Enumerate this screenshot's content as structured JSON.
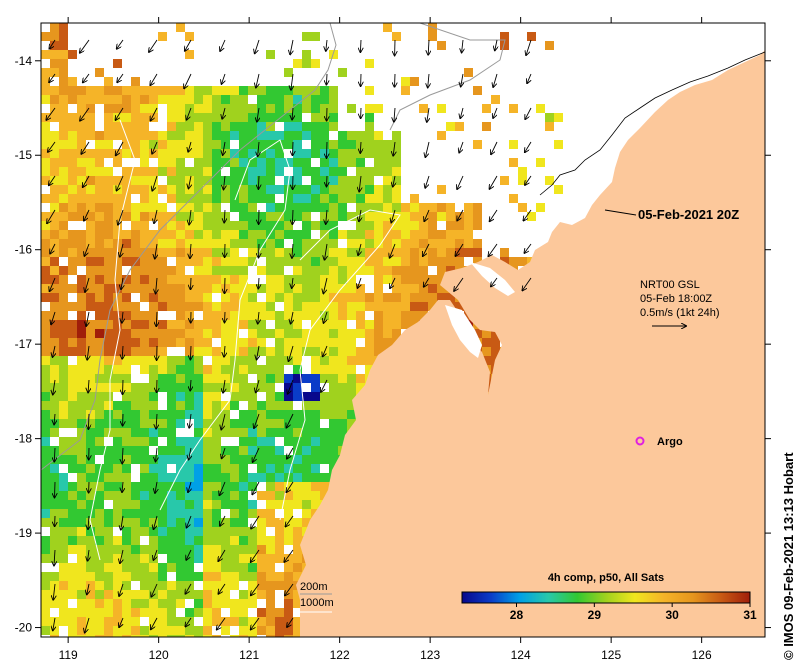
{
  "map": {
    "lon_ticks": [
      "119",
      "120",
      "121",
      "122",
      "123",
      "124",
      "125",
      "126"
    ],
    "lat_ticks": [
      "-14",
      "-15",
      "-16",
      "-17",
      "-18",
      "-19",
      "-20"
    ],
    "lon_range": [
      118.7,
      126.7
    ],
    "lat_range": [
      -13.6,
      -20.1
    ]
  },
  "annotations": {
    "satellite_time": "05-Feb-2021 20Z",
    "current_source": "NRT00 GSL",
    "current_time": "05-Feb 18:00Z",
    "current_scale": "0.5m/s (1kt 24h)",
    "argo_label": "Argo",
    "contour_200": "200m",
    "contour_1000": "1000m"
  },
  "colorbar": {
    "title": "4h comp, p50, All Sats",
    "ticks": [
      "28",
      "29",
      "30",
      "31"
    ],
    "range": [
      27.3,
      31
    ],
    "colors": [
      "#08088c",
      "#0a3cc8",
      "#00a0e6",
      "#28c8aa",
      "#32c832",
      "#a0d21e",
      "#f0e61e",
      "#f5b428",
      "#e6961e",
      "#c85a14",
      "#a01e0a"
    ]
  },
  "credit": "© IMOS 09-Feb-2021 13:13 Hobart",
  "colors": {
    "land": "#fcc89b",
    "argo": "#e020e0",
    "contour": "#9a9a9a"
  }
}
